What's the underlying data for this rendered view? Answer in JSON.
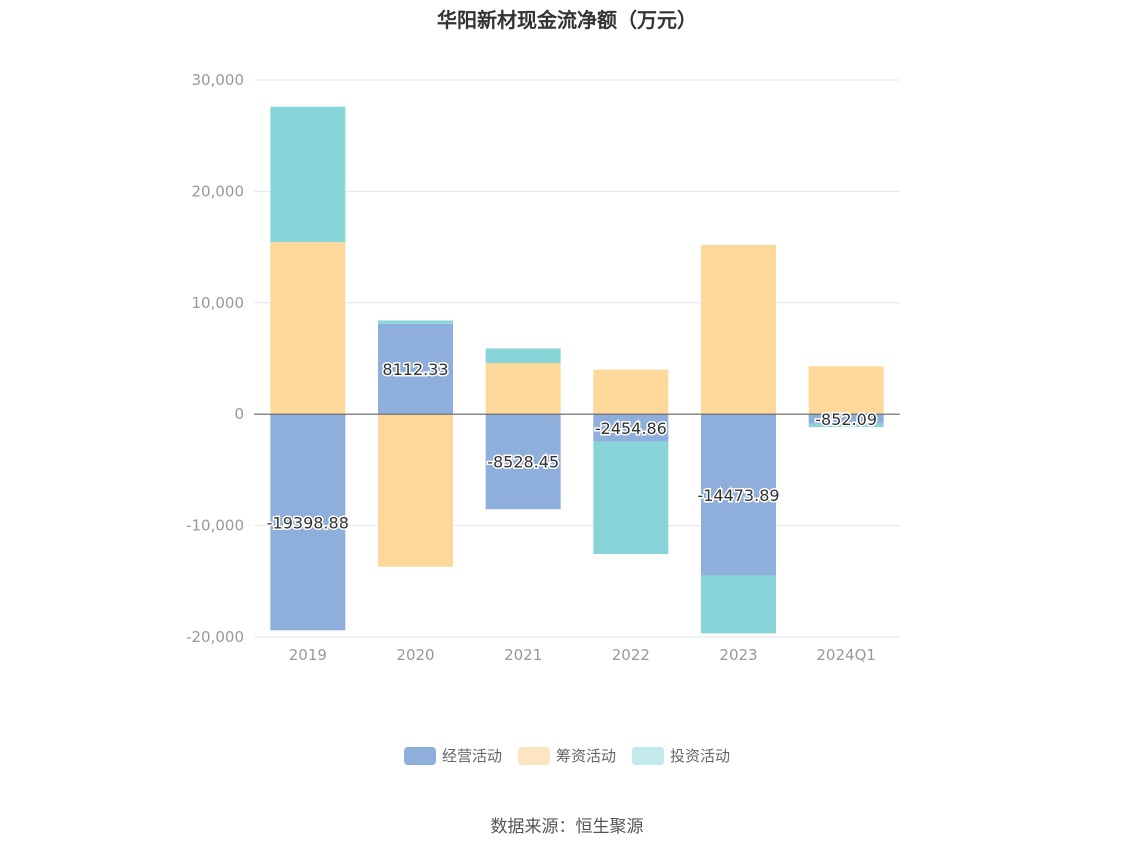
{
  "title": "华阳新材现金流净额（万元）",
  "source": "数据来源：恒生聚源",
  "chart_data": {
    "type": "bar",
    "stacked": true,
    "categories": [
      "2019",
      "2020",
      "2021",
      "2022",
      "2023",
      "2024Q1"
    ],
    "ylim": [
      -20000,
      30000
    ],
    "yticks": [
      30000,
      20000,
      10000,
      0,
      -10000,
      -20000
    ],
    "ytick_labels": [
      "30,000",
      "20,000",
      "10,000",
      "0",
      "-10,000",
      "-20,000"
    ],
    "grid": true,
    "legend_position": "bottom",
    "series": [
      {
        "name": "经营活动",
        "color": "#8eaedb",
        "values": [
          -19398.88,
          8112.33,
          -8528.45,
          -2454.86,
          -14473.89,
          -852.09
        ],
        "labels": [
          "-19398.88",
          "8112.33",
          "-8528.45",
          "-2454.86",
          "-14473.89",
          "-852.09"
        ]
      },
      {
        "name": "筹资活动",
        "color": "#fdd89a",
        "values": [
          15450,
          -13700,
          4600,
          4000,
          15200,
          4300
        ]
      },
      {
        "name": "投资活动",
        "color": "#88d5d9",
        "values": [
          12150,
          300,
          1300,
          -10100,
          -5200,
          -300
        ]
      }
    ]
  },
  "legend_colors": {
    "经营活动": "#8eaedb",
    "筹资活动": "#fde5c4",
    "投资活动": "#c2eaec"
  }
}
